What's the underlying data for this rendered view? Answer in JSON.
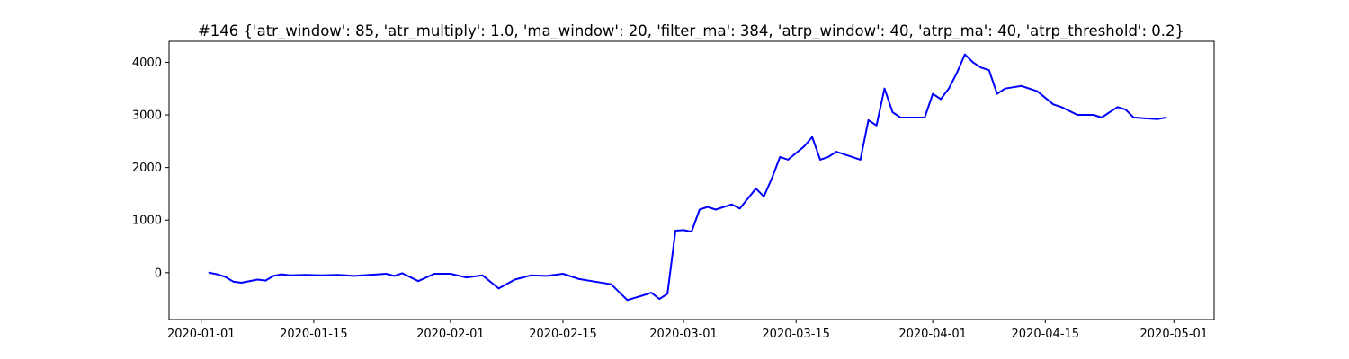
{
  "chart_data": {
    "type": "line",
    "title": "#146 {'atr_window': 85, 'atr_multiply': 1.0, 'ma_window': 20, 'filter_ma': 384, 'atrp_window': 40, 'atrp_ma': 40, 'atrp_threshold': 0.2}",
    "xlabel": "",
    "ylabel": "",
    "x_ticks": [
      "2020-01-01",
      "2020-01-15",
      "2020-02-01",
      "2020-02-15",
      "2020-03-01",
      "2020-03-15",
      "2020-04-01",
      "2020-04-15",
      "2020-05-01"
    ],
    "y_ticks": [
      0,
      1000,
      2000,
      3000,
      4000
    ],
    "xlim": [
      "2019-12-28",
      "2020-05-06"
    ],
    "ylim": [
      -890,
      4400
    ],
    "grid": false,
    "legend": "none",
    "series": [
      {
        "color": "#0000ff",
        "x": [
          "2020-01-02",
          "2020-01-03",
          "2020-01-04",
          "2020-01-05",
          "2020-01-06",
          "2020-01-08",
          "2020-01-09",
          "2020-01-10",
          "2020-01-11",
          "2020-01-12",
          "2020-01-14",
          "2020-01-16",
          "2020-01-18",
          "2020-01-20",
          "2020-01-22",
          "2020-01-24",
          "2020-01-25",
          "2020-01-26",
          "2020-01-28",
          "2020-01-30",
          "2020-02-01",
          "2020-02-03",
          "2020-02-05",
          "2020-02-07",
          "2020-02-09",
          "2020-02-11",
          "2020-02-13",
          "2020-02-15",
          "2020-02-17",
          "2020-02-19",
          "2020-02-21",
          "2020-02-23",
          "2020-02-25",
          "2020-02-26",
          "2020-02-27",
          "2020-02-28",
          "2020-02-29",
          "2020-03-01",
          "2020-03-02",
          "2020-03-03",
          "2020-03-04",
          "2020-03-05",
          "2020-03-07",
          "2020-03-08",
          "2020-03-10",
          "2020-03-11",
          "2020-03-12",
          "2020-03-13",
          "2020-03-14",
          "2020-03-16",
          "2020-03-17",
          "2020-03-18",
          "2020-03-19",
          "2020-03-20",
          "2020-03-23",
          "2020-03-24",
          "2020-03-25",
          "2020-03-26",
          "2020-03-27",
          "2020-03-28",
          "2020-03-31",
          "2020-04-01",
          "2020-04-02",
          "2020-04-03",
          "2020-04-04",
          "2020-04-05",
          "2020-04-06",
          "2020-04-07",
          "2020-04-08",
          "2020-04-09",
          "2020-04-10",
          "2020-04-12",
          "2020-04-13",
          "2020-04-14",
          "2020-04-16",
          "2020-04-17",
          "2020-04-19",
          "2020-04-21",
          "2020-04-22",
          "2020-04-23",
          "2020-04-24",
          "2020-04-25",
          "2020-04-26",
          "2020-04-29",
          "2020-04-30"
        ],
        "values": [
          0,
          -30,
          -80,
          -170,
          -190,
          -130,
          -150,
          -60,
          -30,
          -50,
          -40,
          -50,
          -40,
          -60,
          -40,
          -20,
          -60,
          -10,
          -160,
          -20,
          -20,
          -90,
          -50,
          -300,
          -130,
          -50,
          -60,
          -20,
          -120,
          -170,
          -220,
          -520,
          -430,
          -380,
          -500,
          -400,
          800,
          810,
          780,
          1200,
          1250,
          1200,
          1300,
          1220,
          1600,
          1450,
          1800,
          2200,
          2150,
          2400,
          2580,
          2150,
          2200,
          2300,
          2150,
          2900,
          2800,
          3500,
          3050,
          2950,
          2950,
          3400,
          3300,
          3500,
          3800,
          4150,
          4000,
          3900,
          3850,
          3400,
          3500,
          3550,
          3500,
          3450,
          3200,
          3150,
          3000,
          3000,
          2950,
          3050,
          3150,
          3100,
          2950,
          2920,
          2950
        ]
      }
    ]
  }
}
